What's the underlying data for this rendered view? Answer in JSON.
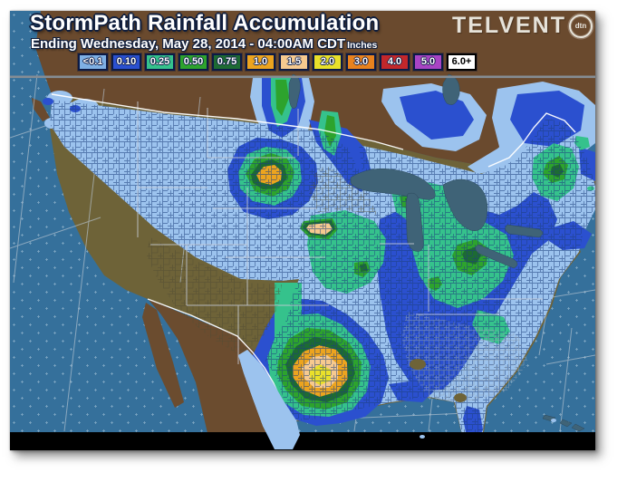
{
  "header": {
    "title": "StormPath Rainfall Accumulation",
    "subtitle": "Ending Wednesday, May 28, 2014 - 04:00AM CDT",
    "units_label": "Inches"
  },
  "logo": {
    "brand": "TELVENT",
    "badge": "dtn"
  },
  "legend": {
    "items": [
      {
        "label": "<0.1",
        "color": "#7fb0e4",
        "text": "light",
        "border": "#0c1a45"
      },
      {
        "label": "0.10",
        "color": "#2a50d0",
        "text": "light",
        "border": "#0c1a45"
      },
      {
        "label": "0.25",
        "color": "#35c28c",
        "text": "light",
        "border": "#0c1a45"
      },
      {
        "label": "0.50",
        "color": "#2da32d",
        "text": "light",
        "border": "#0c1a45"
      },
      {
        "label": "0.75",
        "color": "#1d6b33",
        "text": "light",
        "border": "#0c1a45"
      },
      {
        "label": "1.0",
        "color": "#eca41f",
        "text": "light",
        "border": "#0c1a45"
      },
      {
        "label": "1.5",
        "color": "#f6c98f",
        "text": "light",
        "border": "#0c1a45"
      },
      {
        "label": "2.0",
        "color": "#e9e02a",
        "text": "light",
        "border": "#0c1a45"
      },
      {
        "label": "3.0",
        "color": "#e8821e",
        "text": "light",
        "border": "#0c1a45"
      },
      {
        "label": "4.0",
        "color": "#c3272b",
        "text": "light",
        "border": "#0c1a45"
      },
      {
        "label": "5.0",
        "color": "#a844c4",
        "text": "light",
        "border": "#0c1a45"
      },
      {
        "label": "6.0+",
        "color": "#ffffff",
        "text": "dark",
        "border": "#000000"
      }
    ]
  },
  "map": {
    "colors": {
      "ocean": "#35709b",
      "canada_land": "#6a4a2e",
      "us_dry_land": "#6e6338",
      "mexico_land": "#6b4c2f",
      "lakes": "#3f6377",
      "rain_lt": "#9cc3ee",
      "rain_b": "#2b50cf",
      "rain_t": "#35c28c",
      "rain_g": "#2da32d",
      "rain_dg": "#1d6b33",
      "rain_a": "#eca41f",
      "rain_p": "#f6c98f",
      "rain_y": "#e9e02a",
      "border_national": "#ffffff",
      "state_lines": "#c9cdd6",
      "graticule": "#b9c6d2",
      "county_navy": "#1d3f7e",
      "county_olive": "#4f4a33",
      "county_gray": "#93a4b4",
      "divider": "#858d94",
      "bottom_bar": "#000000"
    }
  }
}
